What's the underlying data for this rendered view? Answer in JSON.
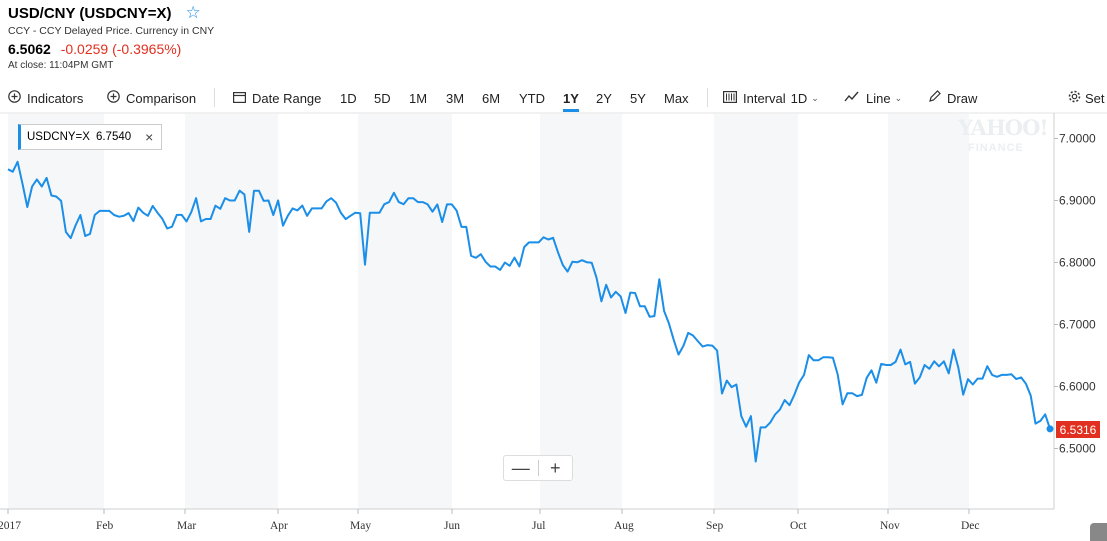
{
  "header": {
    "title": "USD/CNY (USDCNY=X)",
    "subtitle": "CCY - CCY Delayed Price. Currency in CNY",
    "price": "6.5062",
    "change": "-0.0259 (-0.3965%)",
    "close_time": "At close: 11:04PM GMT"
  },
  "toolbar": {
    "indicators": "Indicators",
    "comparison": "Comparison",
    "date_range": "Date Range",
    "ranges": [
      "1D",
      "5D",
      "1M",
      "3M",
      "6M",
      "YTD",
      "1Y",
      "2Y",
      "5Y",
      "Max"
    ],
    "active_range": "1Y",
    "interval_label": "Interval",
    "interval_value": "1D",
    "line_label": "Line",
    "draw_label": "Draw",
    "settings_label": "Set"
  },
  "legend": {
    "symbol": "USDCNY=X",
    "value": "6.7540"
  },
  "zoom": {
    "minus": "—",
    "plus": "+"
  },
  "watermark": {
    "line1": "YAHOO!",
    "line2": "FINANCE"
  },
  "last_value": "6.5316",
  "colors": {
    "line": "#1b8ee8",
    "negative": "#e1301f",
    "band": "#f6f7f8"
  },
  "chart_data": {
    "type": "line",
    "x_labels": [
      "2017",
      "Feb",
      "Mar",
      "Apr",
      "May",
      "Jun",
      "Jul",
      "Aug",
      "Sep",
      "Oct",
      "Nov",
      "Dec"
    ],
    "y_ticks": [
      "7.0000",
      "6.9000",
      "6.8000",
      "6.7000",
      "6.6000",
      "6.5000"
    ],
    "ylim": [
      6.4,
      7.03
    ],
    "series": [
      {
        "name": "USDCNY=X",
        "values": [
          6.9504,
          6.9465,
          6.9624,
          6.927,
          6.8895,
          6.9226,
          6.934,
          6.9226,
          6.9364,
          6.908,
          6.9064,
          6.8993,
          6.8492,
          6.8393,
          6.8597,
          6.8766,
          6.8427,
          6.8462,
          6.8767,
          6.8832,
          6.8832,
          6.8832,
          6.8766,
          6.8738,
          6.8754,
          6.8796,
          6.8668,
          6.8885,
          6.8804,
          6.8754,
          6.8913,
          6.8803,
          6.8703,
          6.8548,
          6.8578,
          6.8768,
          6.8767,
          6.8663,
          6.8813,
          6.9037,
          6.8663,
          6.8702,
          6.8702,
          6.8916,
          6.8866,
          6.9037,
          6.9,
          6.9,
          6.9158,
          6.9099,
          6.8493,
          6.9158,
          6.9158,
          6.8993,
          6.9,
          6.8766,
          6.9,
          6.8593,
          6.8753,
          6.8872,
          6.8841,
          6.8918,
          6.8753,
          6.8872,
          6.8872,
          6.8872,
          6.8986,
          6.9037,
          6.8966,
          6.88,
          6.87,
          6.8753,
          6.8803,
          6.8794,
          6.7964,
          6.8804,
          6.8804,
          6.8804,
          6.894,
          6.8974,
          6.9124,
          6.8974,
          6.894,
          6.9037,
          6.9037,
          6.8974,
          6.8974,
          6.8937,
          6.8819,
          6.8937,
          6.8653,
          6.8937,
          6.8937,
          6.8837,
          6.8575,
          6.8575,
          6.8108,
          6.8075,
          6.8134,
          6.8012,
          6.7936,
          6.7936,
          6.7881,
          6.7998,
          6.7947,
          6.8079,
          6.7937,
          6.8248,
          6.8324,
          6.8324,
          6.8324,
          6.8407,
          6.8371,
          6.8398,
          6.8168,
          6.796,
          6.7854,
          6.8012,
          6.8003,
          6.8037,
          6.8003,
          6.7997,
          6.7755,
          6.7374,
          6.7641,
          6.7436,
          6.7527,
          6.7451,
          6.7185,
          6.7514,
          6.7508,
          6.7293,
          6.7293,
          6.7126,
          6.7136,
          6.7729,
          6.7218,
          6.7018,
          6.6753,
          6.6514,
          6.6655,
          6.6865,
          6.6823,
          6.6733,
          6.6643,
          6.6668,
          6.6659,
          6.6579,
          6.5887,
          6.6095,
          6.5991,
          6.6033,
          6.5522,
          6.5352,
          6.5522,
          6.4791,
          6.5341,
          6.5341,
          6.5418,
          6.5547,
          6.5627,
          6.5781,
          6.5698,
          6.5864,
          6.6063,
          6.6187,
          6.6507,
          6.6423,
          6.6423,
          6.6473,
          6.6473,
          6.6463,
          6.6193,
          6.5712,
          6.5892,
          6.5892,
          6.5845,
          6.5865,
          6.6141,
          6.6261,
          6.6061,
          6.6365,
          6.6346,
          6.6346,
          6.6397,
          6.6595,
          6.6357,
          6.6397,
          6.6047,
          6.6147,
          6.6347,
          6.6286,
          6.6407,
          6.6326,
          6.6407,
          6.6212,
          6.6595,
          6.6306,
          6.5867,
          6.6117,
          6.6033,
          6.6127,
          6.6127,
          6.6328,
          6.6187,
          6.6157,
          6.6187,
          6.6187,
          6.6197,
          6.6121,
          6.6147,
          6.6045,
          6.5855,
          6.5401,
          6.5445,
          6.5551,
          6.5316
        ]
      }
    ],
    "legend_position": "top-left"
  }
}
